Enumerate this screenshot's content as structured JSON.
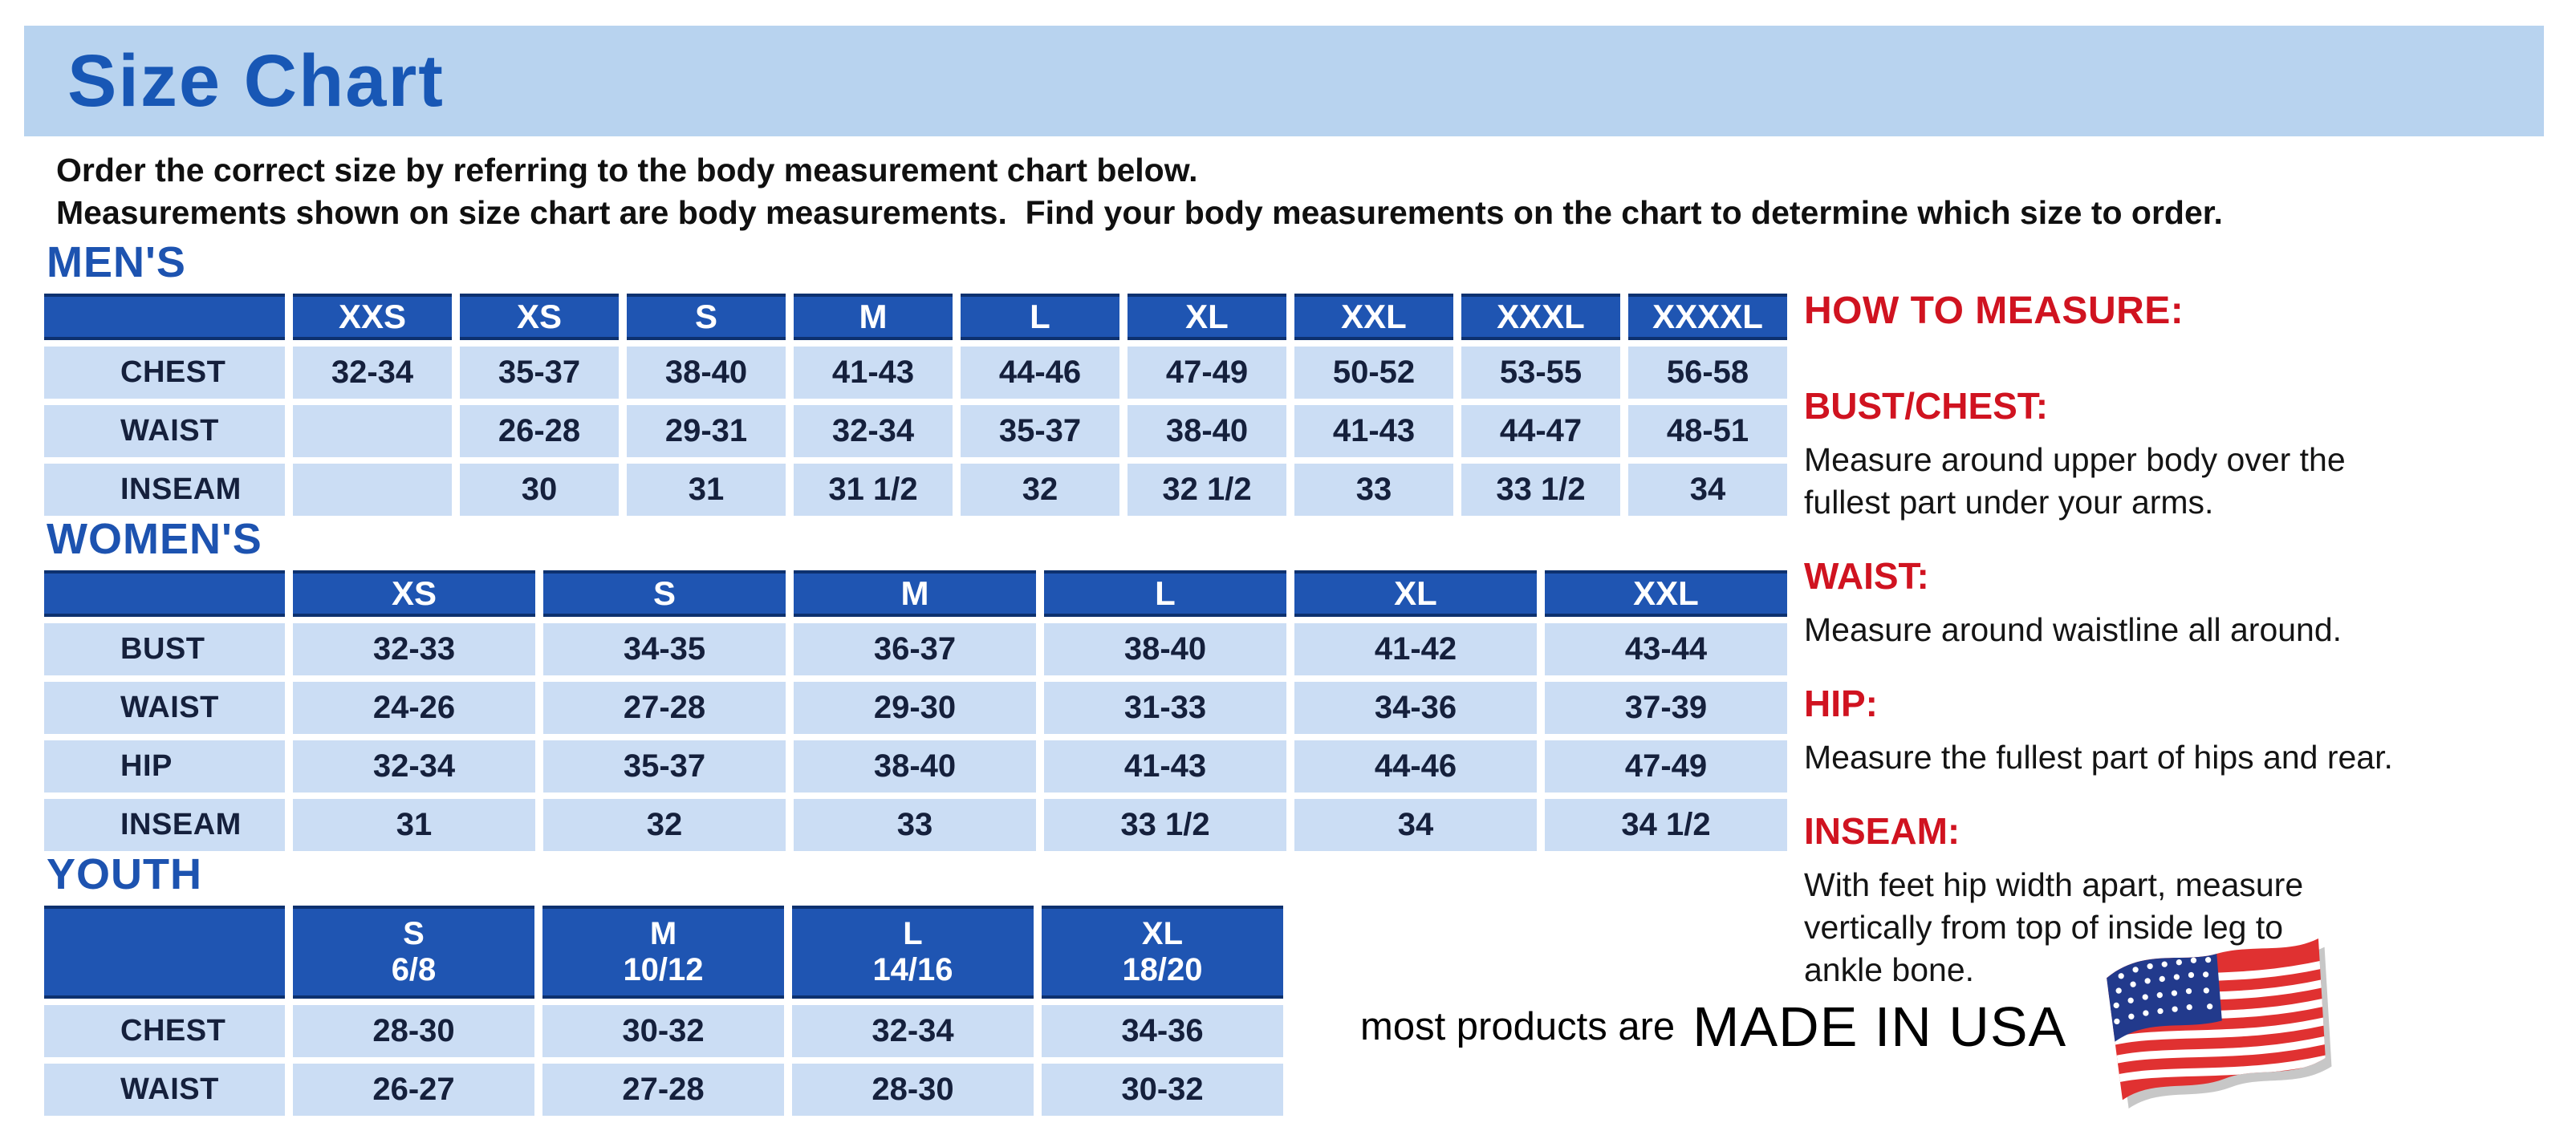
{
  "page": {
    "title": "Size Chart",
    "intro_line1": "Order the correct size by referring to the body measurement chart below.",
    "intro_line2": "Measurements shown on size chart are body measurements.  Find your body measurements on the chart to determine which size to order."
  },
  "colors": {
    "banner_bg": "#b8d3ef",
    "heading_blue": "#1d53b0",
    "table_header_blue": "#1f55b2",
    "table_header_border": "#0d316f",
    "cell_blue": "#cbddf4",
    "cell_text": "#15203c",
    "accent_red": "#d01320",
    "flag_red": "#e03131",
    "flag_blue": "#223a8c"
  },
  "tables": [
    {
      "id": "mens",
      "heading": "MEN'S",
      "columns": [
        "",
        "XXS",
        "XS",
        "S",
        "M",
        "L",
        "XL",
        "XXL",
        "XXXL",
        "XXXXL"
      ],
      "rows": [
        {
          "label": "CHEST",
          "values": [
            "32-34",
            "35-37",
            "38-40",
            "41-43",
            "44-46",
            "47-49",
            "50-52",
            "53-55",
            "56-58"
          ]
        },
        {
          "label": "WAIST",
          "values": [
            "",
            "26-28",
            "29-31",
            "32-34",
            "35-37",
            "38-40",
            "41-43",
            "44-47",
            "48-51"
          ]
        },
        {
          "label": "INSEAM",
          "values": [
            "",
            "30",
            "31",
            "31 1/2",
            "32",
            "32 1/2",
            "33",
            "33 1/2",
            "34"
          ]
        }
      ]
    },
    {
      "id": "womens",
      "heading": "WOMEN'S",
      "columns": [
        "",
        "XS",
        "S",
        "M",
        "L",
        "XL",
        "XXL"
      ],
      "rows": [
        {
          "label": "BUST",
          "values": [
            "32-33",
            "34-35",
            "36-37",
            "38-40",
            "41-42",
            "43-44"
          ]
        },
        {
          "label": "WAIST",
          "values": [
            "24-26",
            "27-28",
            "29-30",
            "31-33",
            "34-36",
            "37-39"
          ]
        },
        {
          "label": "HIP",
          "values": [
            "32-34",
            "35-37",
            "38-40",
            "41-43",
            "44-46",
            "47-49"
          ]
        },
        {
          "label": "INSEAM",
          "values": [
            "31",
            "32",
            "33",
            "33 1/2",
            "34",
            "34 1/2"
          ]
        }
      ]
    },
    {
      "id": "youth",
      "heading": "YOUTH",
      "columns": [
        "",
        "S\n6/8",
        "M\n10/12",
        "L\n14/16",
        "XL\n18/20"
      ],
      "rows": [
        {
          "label": "CHEST",
          "values": [
            "28-30",
            "30-32",
            "32-34",
            "34-36"
          ]
        },
        {
          "label": "WAIST",
          "values": [
            "26-27",
            "27-28",
            "28-30",
            "30-32"
          ]
        }
      ]
    }
  ],
  "how_to_measure": {
    "heading": "HOW TO MEASURE:",
    "items": [
      {
        "term": "BUST/CHEST:",
        "description": "Measure around upper body over the\nfullest part under your arms."
      },
      {
        "term": "WAIST:",
        "description": "Measure around waistline all around."
      },
      {
        "term": "HIP:",
        "description": "Measure the fullest part of hips and rear."
      },
      {
        "term": "INSEAM:",
        "description": "With feet hip width apart, measure\nvertically from top of inside leg to\nankle bone."
      }
    ]
  },
  "footer": {
    "prefix": "most products are",
    "emphasis": "MADE IN USA",
    "flag_icon": "usa-flag-icon"
  }
}
